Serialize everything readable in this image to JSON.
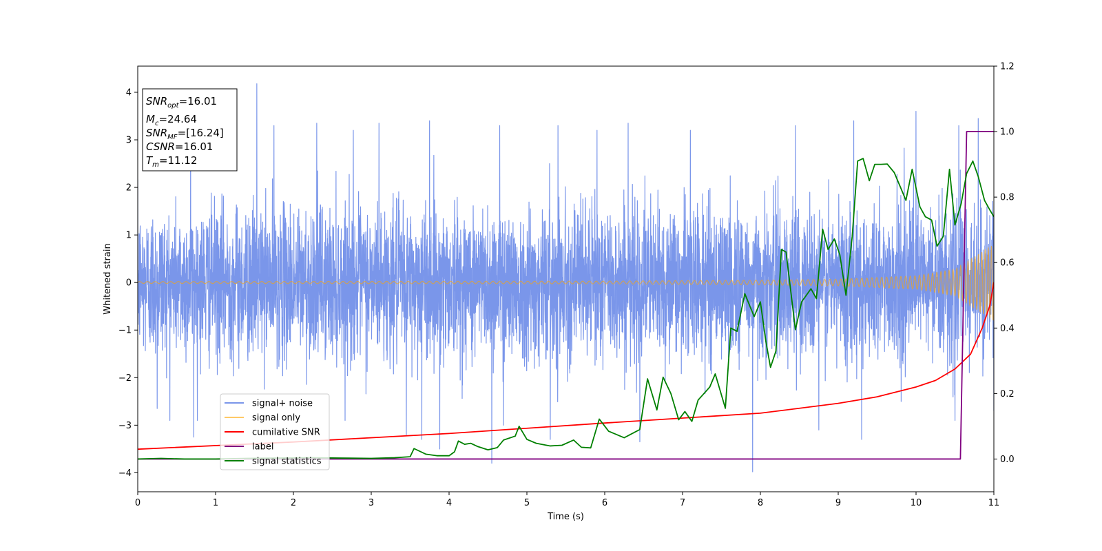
{
  "chart_data": {
    "type": "line",
    "xlabel": "Time (s)",
    "ylabel": "Whitened strain",
    "xlim": [
      0,
      11
    ],
    "ylim": [
      -4.4,
      4.55
    ],
    "ylim_right": [
      -0.1,
      1.2
    ],
    "x_ticks": [
      0,
      1,
      2,
      3,
      4,
      5,
      6,
      7,
      8,
      9,
      10,
      11
    ],
    "y_ticks": [
      -4,
      -3,
      -2,
      -1,
      0,
      1,
      2,
      3,
      4
    ],
    "y_ticks_right": [
      "0.0",
      "0.2",
      "0.4",
      "0.6",
      "0.8",
      "1.0",
      "1.2"
    ],
    "grid": false,
    "legend_position": "lower-left",
    "info_box": {
      "position": "top-left",
      "lines": [
        {
          "label": "SNR",
          "sub": "opt",
          "value": "=16.01"
        },
        {
          "label": "M",
          "sub": "c",
          "value": "=24.64"
        },
        {
          "label": "SNR",
          "sub": "MF",
          "value": "=[16.24]"
        },
        {
          "label": "CSNR",
          "sub": "",
          "value": "=16.01"
        },
        {
          "label": "T",
          "sub": "m",
          "value": "=11.12"
        }
      ]
    },
    "series": [
      {
        "name": "signal+ noise",
        "axis": "left",
        "color": "#4169e1",
        "kind": "noise",
        "noise_std": 0.78,
        "spikes": [
          {
            "x": 1.53,
            "y": 4.18
          },
          {
            "x": 0.68,
            "y": 3.3
          },
          {
            "x": 1.75,
            "y": 3.3
          },
          {
            "x": 2.3,
            "y": 3.35
          },
          {
            "x": 2.77,
            "y": 3.2
          },
          {
            "x": 3.1,
            "y": 3.35
          },
          {
            "x": 3.45,
            "y": 3.4
          },
          {
            "x": 3.75,
            "y": 3.4
          },
          {
            "x": 3.88,
            "y": 3.45
          },
          {
            "x": 4.65,
            "y": 3.3
          },
          {
            "x": 5.4,
            "y": 3.3
          },
          {
            "x": 5.9,
            "y": 3.2
          },
          {
            "x": 6.3,
            "y": 3.35
          },
          {
            "x": 7.1,
            "y": 3.2
          },
          {
            "x": 8.45,
            "y": 3.3
          },
          {
            "x": 9.2,
            "y": 3.4
          },
          {
            "x": 10.0,
            "y": 3.6
          },
          {
            "x": 10.55,
            "y": 3.3
          },
          {
            "x": 10.8,
            "y": 3.45
          },
          {
            "x": 0.25,
            "y": -2.65
          },
          {
            "x": 0.72,
            "y": -3.25
          },
          {
            "x": 3.45,
            "y": -3.2
          },
          {
            "x": 3.65,
            "y": -3.3
          },
          {
            "x": 3.88,
            "y": -3.5
          },
          {
            "x": 4.55,
            "y": -3.8
          },
          {
            "x": 4.7,
            "y": -3.0
          },
          {
            "x": 5.3,
            "y": -3.3
          },
          {
            "x": 6.45,
            "y": -3.35
          },
          {
            "x": 7.9,
            "y": -3.98
          },
          {
            "x": 8.75,
            "y": -3.1
          },
          {
            "x": 9.3,
            "y": -3.3
          },
          {
            "x": 10.5,
            "y": -2.9
          },
          {
            "x": 11.0,
            "y": -2.7
          }
        ]
      },
      {
        "name": "signal only",
        "axis": "left",
        "color": "#ffa500",
        "kind": "chirp",
        "t_merge": 11.12,
        "amplitude": [
          {
            "x": 0,
            "y": 0.02
          },
          {
            "x": 6,
            "y": 0.03
          },
          {
            "x": 8,
            "y": 0.05
          },
          {
            "x": 9,
            "y": 0.07
          },
          {
            "x": 10,
            "y": 0.14
          },
          {
            "x": 10.5,
            "y": 0.28
          },
          {
            "x": 11,
            "y": 0.8
          }
        ],
        "frequency": [
          {
            "x": 0,
            "y": 10
          },
          {
            "x": 6,
            "y": 11.5
          },
          {
            "x": 8,
            "y": 13
          },
          {
            "x": 9,
            "y": 14.5
          },
          {
            "x": 10,
            "y": 17
          },
          {
            "x": 10.5,
            "y": 20
          },
          {
            "x": 11,
            "y": 25
          }
        ]
      },
      {
        "name": "cumilative SNR",
        "axis": "right",
        "color": "#ff0000",
        "kind": "line",
        "points": [
          {
            "x": 0,
            "y": 0.03
          },
          {
            "x": 2,
            "y": 0.052
          },
          {
            "x": 4,
            "y": 0.078
          },
          {
            "x": 6,
            "y": 0.11
          },
          {
            "x": 8,
            "y": 0.14
          },
          {
            "x": 9,
            "y": 0.17
          },
          {
            "x": 9.5,
            "y": 0.19
          },
          {
            "x": 10,
            "y": 0.22
          },
          {
            "x": 10.25,
            "y": 0.24
          },
          {
            "x": 10.5,
            "y": 0.275
          },
          {
            "x": 10.7,
            "y": 0.32
          },
          {
            "x": 10.85,
            "y": 0.4
          },
          {
            "x": 10.95,
            "y": 0.47
          },
          {
            "x": 11.0,
            "y": 0.54
          }
        ]
      },
      {
        "name": "label",
        "axis": "right",
        "color": "#800080",
        "kind": "line",
        "points": [
          {
            "x": 0,
            "y": 0
          },
          {
            "x": 10.57,
            "y": 0
          },
          {
            "x": 10.65,
            "y": 1.0
          },
          {
            "x": 11.0,
            "y": 1.0
          }
        ]
      },
      {
        "name": "signal statistics",
        "axis": "right",
        "color": "#008000",
        "kind": "line",
        "points": [
          {
            "x": 0,
            "y": 0
          },
          {
            "x": 0.3,
            "y": 0.002
          },
          {
            "x": 0.6,
            "y": 0
          },
          {
            "x": 1,
            "y": 0
          },
          {
            "x": 1.4,
            "y": 0.002
          },
          {
            "x": 1.8,
            "y": 0.003
          },
          {
            "x": 2.2,
            "y": 0.004
          },
          {
            "x": 2.6,
            "y": 0.003
          },
          {
            "x": 3.0,
            "y": 0.002
          },
          {
            "x": 3.3,
            "y": 0.004
          },
          {
            "x": 3.5,
            "y": 0.007
          },
          {
            "x": 3.55,
            "y": 0.032
          },
          {
            "x": 3.7,
            "y": 0.015
          },
          {
            "x": 3.85,
            "y": 0.01
          },
          {
            "x": 4.0,
            "y": 0.01
          },
          {
            "x": 4.07,
            "y": 0.022
          },
          {
            "x": 4.12,
            "y": 0.055
          },
          {
            "x": 4.2,
            "y": 0.045
          },
          {
            "x": 4.28,
            "y": 0.048
          },
          {
            "x": 4.37,
            "y": 0.038
          },
          {
            "x": 4.5,
            "y": 0.028
          },
          {
            "x": 4.62,
            "y": 0.035
          },
          {
            "x": 4.7,
            "y": 0.058
          },
          {
            "x": 4.85,
            "y": 0.07
          },
          {
            "x": 4.9,
            "y": 0.1
          },
          {
            "x": 5.0,
            "y": 0.06
          },
          {
            "x": 5.12,
            "y": 0.048
          },
          {
            "x": 5.3,
            "y": 0.04
          },
          {
            "x": 5.45,
            "y": 0.042
          },
          {
            "x": 5.6,
            "y": 0.058
          },
          {
            "x": 5.7,
            "y": 0.036
          },
          {
            "x": 5.82,
            "y": 0.034
          },
          {
            "x": 5.93,
            "y": 0.122
          },
          {
            "x": 6.05,
            "y": 0.085
          },
          {
            "x": 6.15,
            "y": 0.075
          },
          {
            "x": 6.25,
            "y": 0.065
          },
          {
            "x": 6.33,
            "y": 0.075
          },
          {
            "x": 6.45,
            "y": 0.09
          },
          {
            "x": 6.55,
            "y": 0.245
          },
          {
            "x": 6.67,
            "y": 0.15
          },
          {
            "x": 6.75,
            "y": 0.25
          },
          {
            "x": 6.85,
            "y": 0.2
          },
          {
            "x": 6.95,
            "y": 0.12
          },
          {
            "x": 7.03,
            "y": 0.145
          },
          {
            "x": 7.12,
            "y": 0.115
          },
          {
            "x": 7.2,
            "y": 0.18
          },
          {
            "x": 7.35,
            "y": 0.22
          },
          {
            "x": 7.42,
            "y": 0.26
          },
          {
            "x": 7.55,
            "y": 0.155
          },
          {
            "x": 7.62,
            "y": 0.4
          },
          {
            "x": 7.7,
            "y": 0.39
          },
          {
            "x": 7.8,
            "y": 0.505
          },
          {
            "x": 7.92,
            "y": 0.435
          },
          {
            "x": 8.0,
            "y": 0.48
          },
          {
            "x": 8.07,
            "y": 0.36
          },
          {
            "x": 8.13,
            "y": 0.28
          },
          {
            "x": 8.2,
            "y": 0.33
          },
          {
            "x": 8.27,
            "y": 0.64
          },
          {
            "x": 8.33,
            "y": 0.632
          },
          {
            "x": 8.45,
            "y": 0.395
          },
          {
            "x": 8.53,
            "y": 0.48
          },
          {
            "x": 8.65,
            "y": 0.52
          },
          {
            "x": 8.72,
            "y": 0.49
          },
          {
            "x": 8.8,
            "y": 0.702
          },
          {
            "x": 8.87,
            "y": 0.64
          },
          {
            "x": 8.95,
            "y": 0.672
          },
          {
            "x": 9.02,
            "y": 0.625
          },
          {
            "x": 9.1,
            "y": 0.5
          },
          {
            "x": 9.18,
            "y": 0.68
          },
          {
            "x": 9.25,
            "y": 0.91
          },
          {
            "x": 9.32,
            "y": 0.918
          },
          {
            "x": 9.4,
            "y": 0.85
          },
          {
            "x": 9.47,
            "y": 0.9
          },
          {
            "x": 9.55,
            "y": 0.9
          },
          {
            "x": 9.63,
            "y": 0.901
          },
          {
            "x": 9.72,
            "y": 0.875
          },
          {
            "x": 9.8,
            "y": 0.83
          },
          {
            "x": 9.87,
            "y": 0.79
          },
          {
            "x": 9.95,
            "y": 0.885
          },
          {
            "x": 10.05,
            "y": 0.77
          },
          {
            "x": 10.12,
            "y": 0.74
          },
          {
            "x": 10.2,
            "y": 0.73
          },
          {
            "x": 10.27,
            "y": 0.65
          },
          {
            "x": 10.35,
            "y": 0.68
          },
          {
            "x": 10.43,
            "y": 0.885
          },
          {
            "x": 10.5,
            "y": 0.715
          },
          {
            "x": 10.58,
            "y": 0.78
          },
          {
            "x": 10.65,
            "y": 0.872
          },
          {
            "x": 10.73,
            "y": 0.91
          },
          {
            "x": 10.8,
            "y": 0.862
          },
          {
            "x": 10.88,
            "y": 0.79
          },
          {
            "x": 10.95,
            "y": 0.76
          },
          {
            "x": 11.0,
            "y": 0.74
          }
        ]
      }
    ]
  }
}
